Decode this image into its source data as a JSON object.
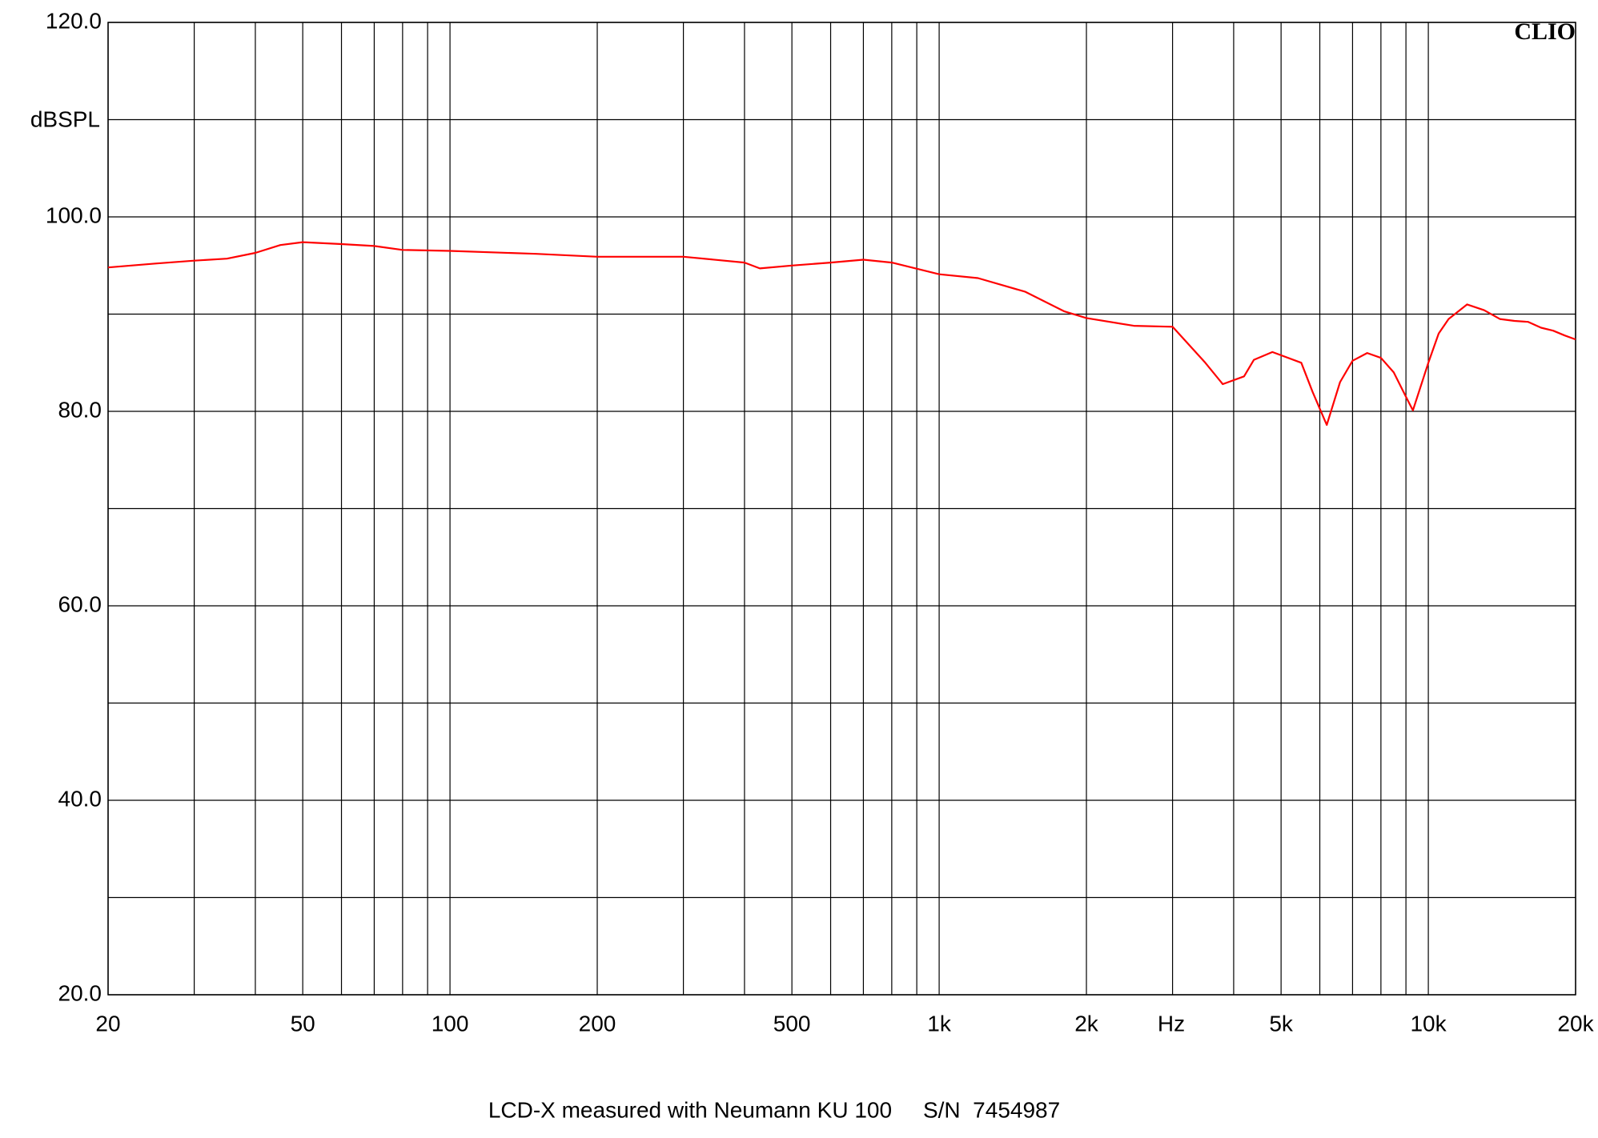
{
  "chart_data": {
    "type": "line",
    "title": "LCD-X measured with Neumann KU 100     S/N  7454987",
    "y_label": "dBSPL",
    "x_label": "Hz",
    "brand": "CLIO",
    "x_scale": "log",
    "grid": true,
    "xlim": [
      20,
      20000
    ],
    "ylim": [
      20,
      120
    ],
    "xticks": [
      20,
      50,
      100,
      200,
      500,
      {
        "value": 1000,
        "label": "1k"
      },
      {
        "value": 2000,
        "label": "2k"
      },
      {
        "value": 5000,
        "label": "5k"
      },
      {
        "value": 10000,
        "label": "10k"
      },
      {
        "value": 20000,
        "label": "20k"
      }
    ],
    "xgrid": [
      30,
      40,
      60,
      70,
      80,
      90,
      300,
      400,
      600,
      700,
      800,
      900,
      3000,
      4000,
      6000,
      7000,
      8000,
      9000
    ],
    "yticks": [
      {
        "value": 20,
        "label": "20.0"
      },
      {
        "value": 40,
        "label": "40.0"
      },
      {
        "value": 60,
        "label": "60.0"
      },
      {
        "value": 80,
        "label": "80.0"
      },
      {
        "value": 100,
        "label": "100.0"
      },
      {
        "value": 120,
        "label": "120.0"
      }
    ],
    "ygrid": [
      30,
      50,
      70,
      90,
      110
    ],
    "x": [
      20,
      25,
      30,
      35,
      40,
      45,
      50,
      60,
      70,
      80,
      100,
      150,
      200,
      300,
      400,
      430,
      500,
      600,
      700,
      800,
      1000,
      1200,
      1500,
      1800,
      2000,
      2500,
      3000,
      3500,
      3800,
      4200,
      4400,
      4800,
      5500,
      5800,
      6200,
      6600,
      7000,
      7500,
      8000,
      8500,
      9000,
      9300,
      10000,
      10500,
      11000,
      12000,
      13000,
      14000,
      15000,
      16000,
      17000,
      18000,
      19000,
      20000
    ],
    "series": [
      {
        "name": "LCD-X",
        "color": "#ff0000",
        "values": [
          94.8,
          95.2,
          95.5,
          95.7,
          96.3,
          97.1,
          97.4,
          97.2,
          97.0,
          96.6,
          96.5,
          96.2,
          95.9,
          95.9,
          95.3,
          94.7,
          95.0,
          95.3,
          95.6,
          95.3,
          94.1,
          93.7,
          92.3,
          90.3,
          89.6,
          88.8,
          88.7,
          85.0,
          82.8,
          83.6,
          85.3,
          86.1,
          85.0,
          82.0,
          78.6,
          83.0,
          85.2,
          86.0,
          85.5,
          84.0,
          81.5,
          80.1,
          85.0,
          88.0,
          89.5,
          91.0,
          90.4,
          89.5,
          89.3,
          89.2,
          88.6,
          88.3,
          87.8,
          87.4
        ]
      }
    ]
  }
}
